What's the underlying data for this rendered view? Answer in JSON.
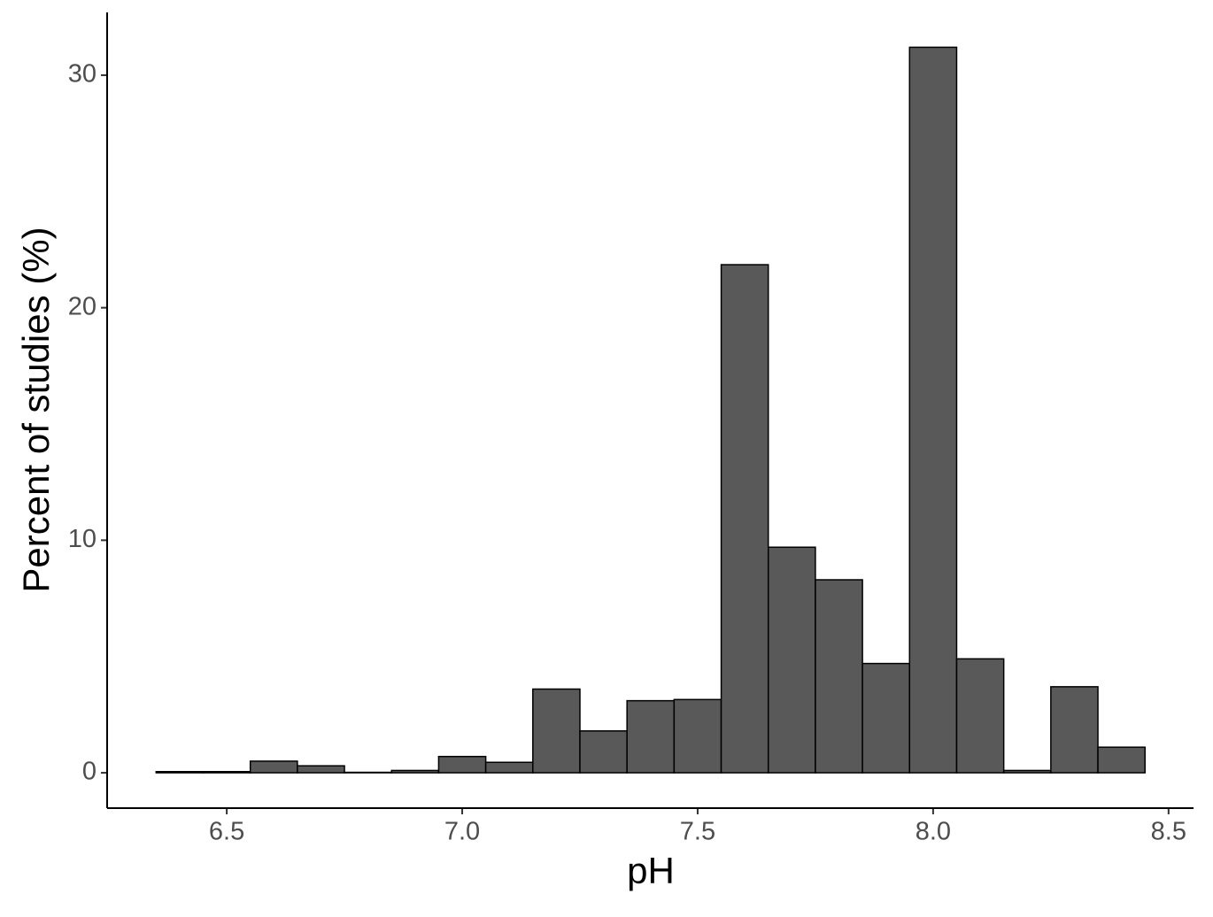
{
  "chart_data": {
    "type": "histogram",
    "x_label": "pH",
    "y_label": "Percent of studies (%)",
    "bins": [
      6.35,
      6.45,
      6.55,
      6.65,
      6.75,
      6.85,
      6.95,
      7.05,
      7.15,
      7.25,
      7.35,
      7.45,
      7.55,
      7.65,
      7.75,
      7.85,
      7.95,
      8.05,
      8.15,
      8.25,
      8.35,
      8.45
    ],
    "values": [
      0.05,
      0.05,
      0.5,
      0.3,
      0.02,
      0.1,
      0.7,
      0.45,
      3.6,
      1.8,
      3.1,
      3.15,
      21.85,
      9.7,
      8.3,
      4.7,
      31.2,
      4.9,
      0.1,
      3.7,
      1.1
    ],
    "color": "#595959",
    "xlim": [
      6.246,
      8.553
    ],
    "ylim": [
      -1.52,
      32.7
    ],
    "xticks": [
      {
        "value": 6.5,
        "label": "6.5"
      },
      {
        "value": 7,
        "label": "7.0"
      },
      {
        "value": 7.5,
        "label": "7.5"
      },
      {
        "value": 8,
        "label": "8.0"
      },
      {
        "value": 8.5,
        "label": "8.5"
      }
    ],
    "yticks": [
      0,
      10,
      20,
      30
    ],
    "grid": false
  }
}
